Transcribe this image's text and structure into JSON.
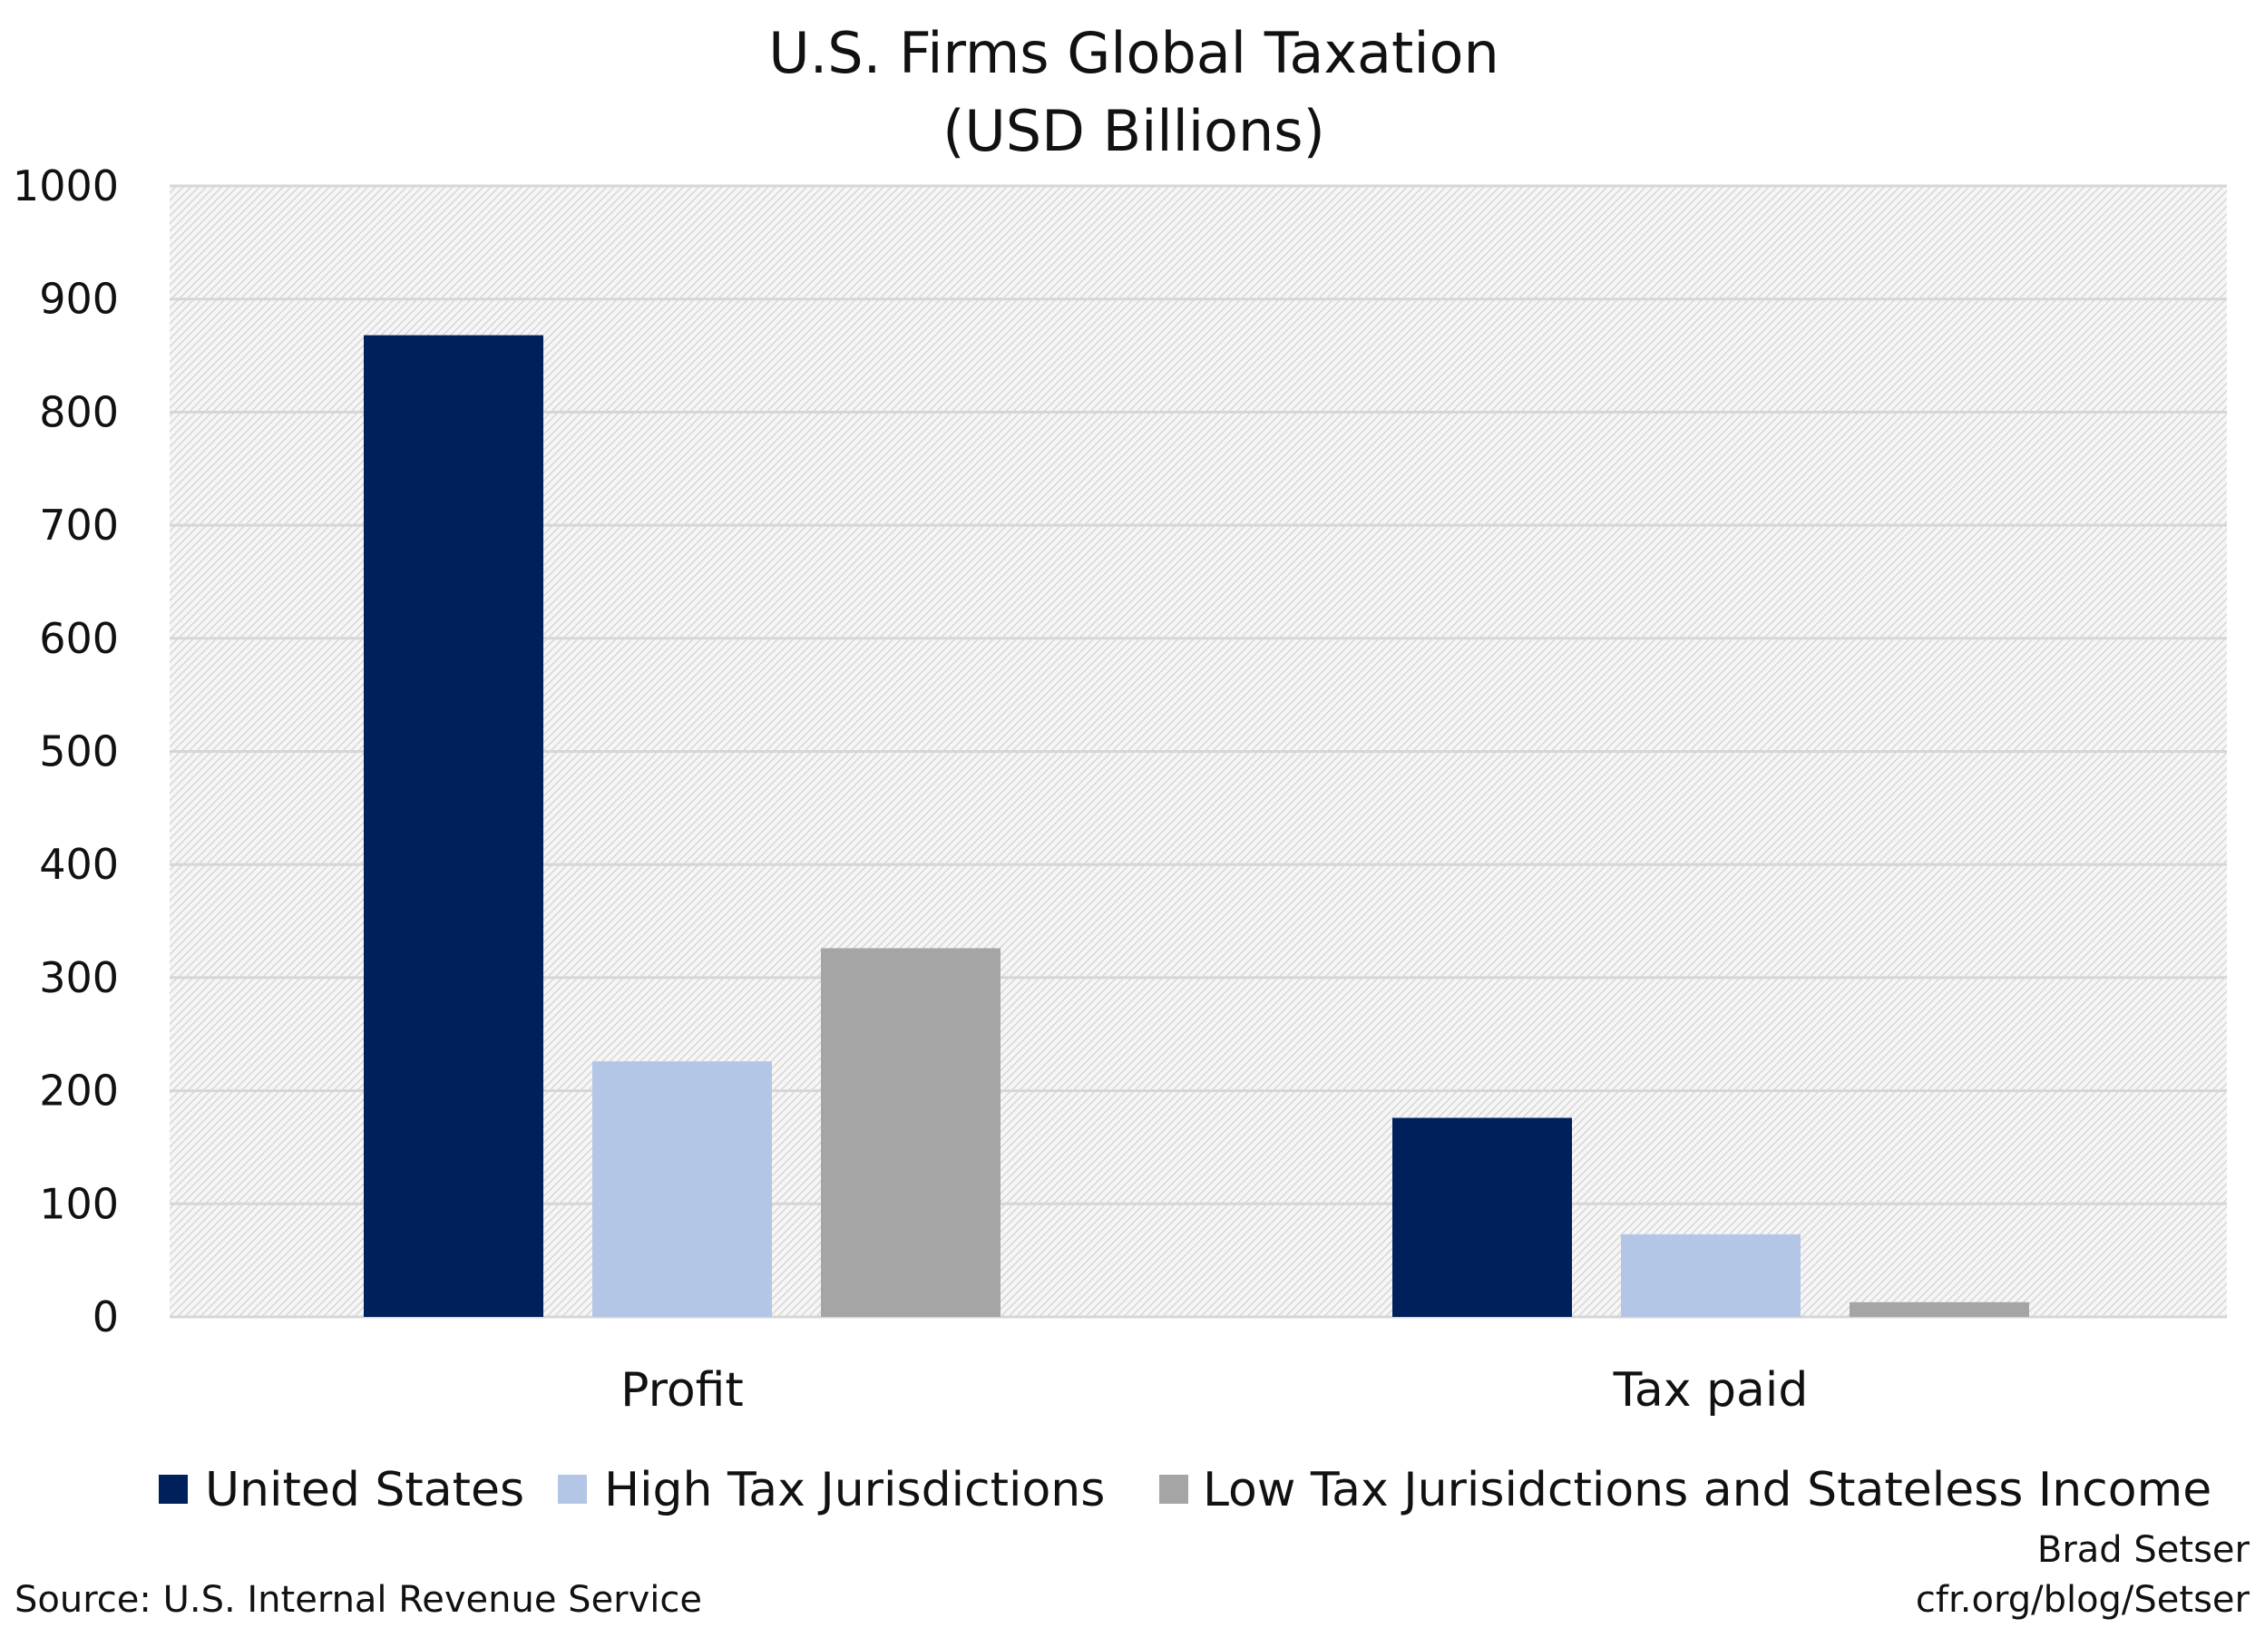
{
  "chart_data": {
    "type": "bar",
    "title": "U.S. Firms Global Taxation",
    "subtitle": "(USD Billions)",
    "categories": [
      "Profit",
      "Tax paid"
    ],
    "series": [
      {
        "name": "United States",
        "color": "#00205B",
        "values": [
          868,
          176
        ]
      },
      {
        "name": "High Tax Jurisdictions",
        "color": "#B4C6E6",
        "values": [
          226,
          73
        ]
      },
      {
        "name": "Low Tax Jurisidctions and Stateless Income",
        "color": "#A5A5A5",
        "values": [
          326,
          13
        ]
      }
    ],
    "ylim": [
      0,
      1000
    ],
    "yticks": [
      "0",
      "100",
      "200",
      "300",
      "400",
      "500",
      "600",
      "700",
      "800",
      "900",
      "1000"
    ],
    "grid": true,
    "legend_position": "bottom",
    "plot_background": "light gray diagonal hatch"
  },
  "source": "Source: U.S. Internal Revenue Service",
  "credit": {
    "author": "Brad Setser",
    "url": "cfr.org/blog/Setser"
  }
}
